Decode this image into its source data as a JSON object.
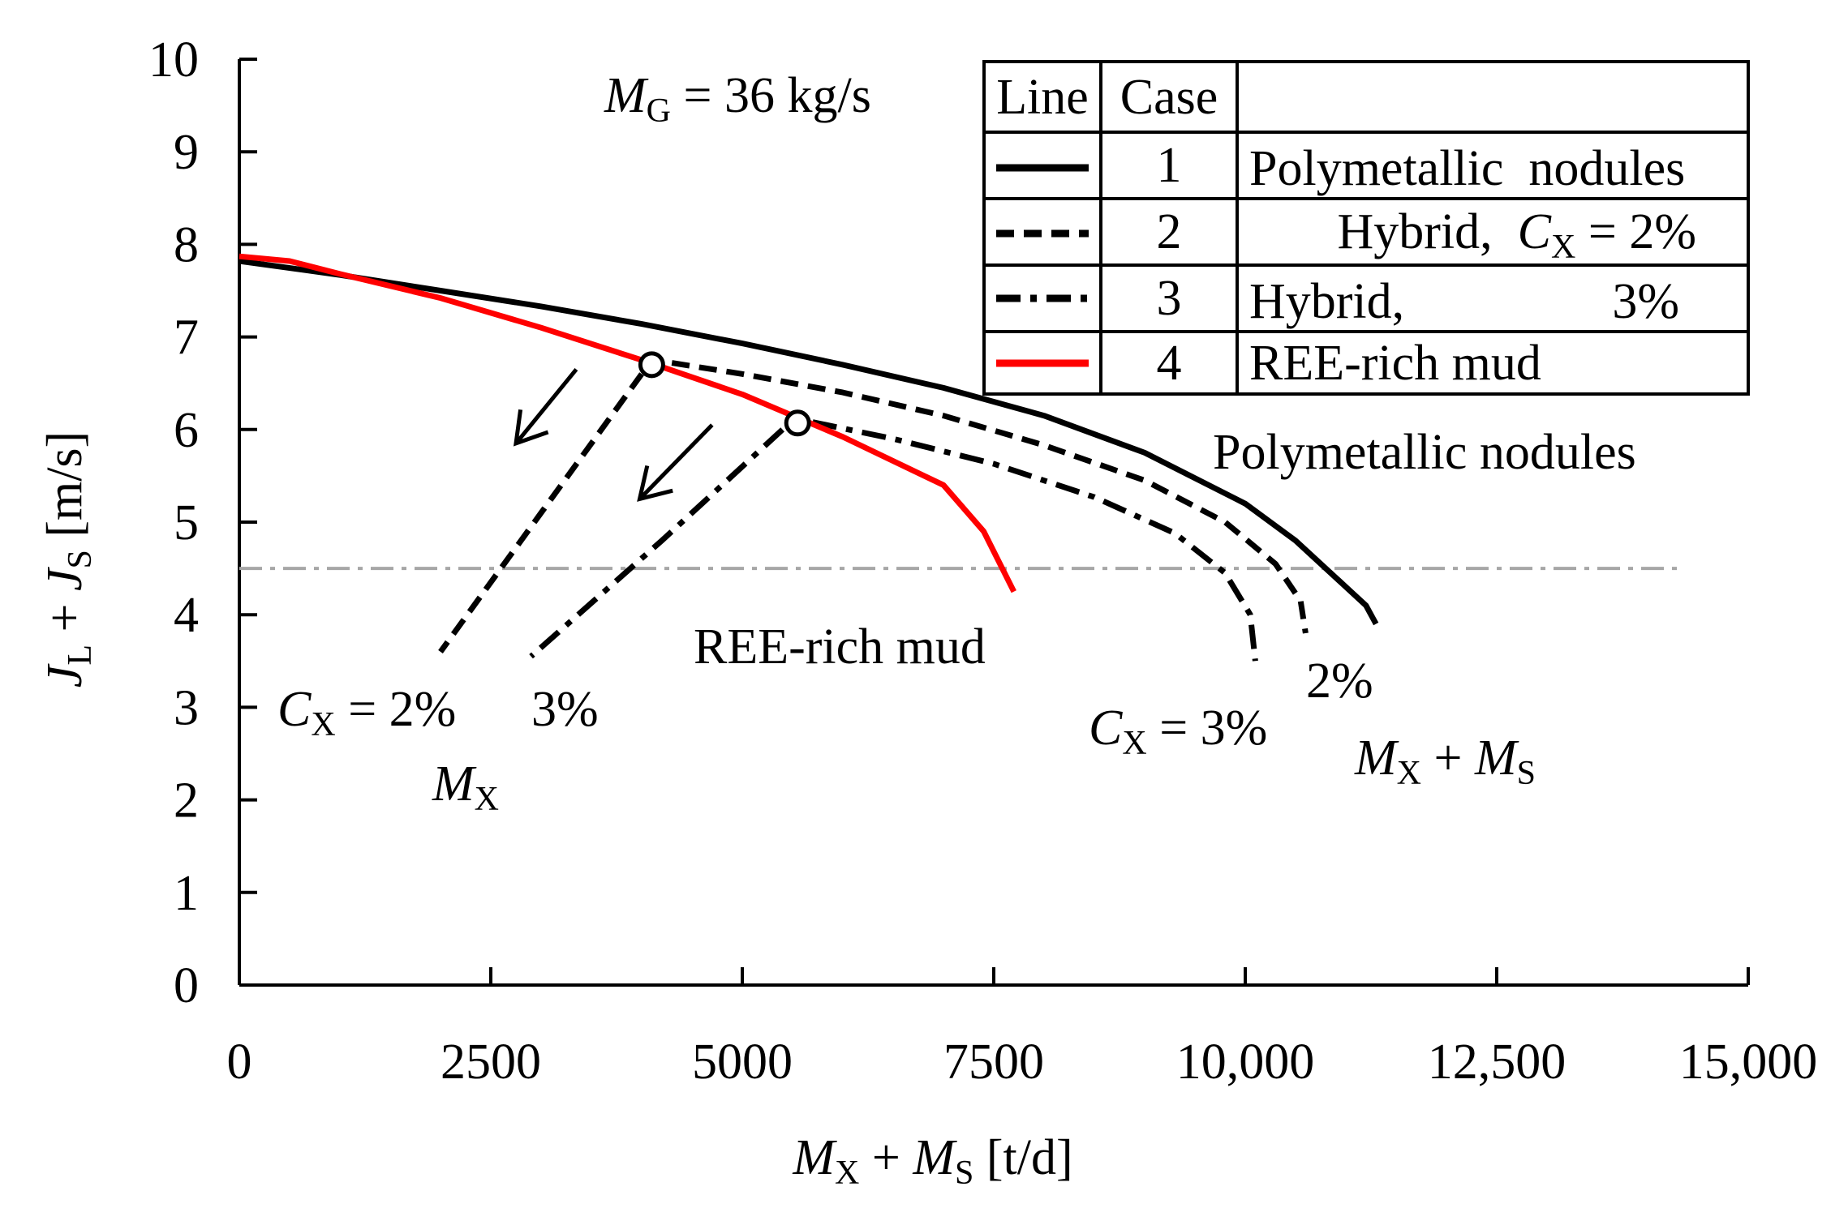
{
  "chart_data": {
    "type": "line",
    "title": "",
    "xlabel": {
      "v1": "M",
      "s1": "X",
      "plus": " + ",
      "v2": "M",
      "s2": "S",
      "unit": " [t/d]"
    },
    "ylabel": {
      "v1": "J",
      "s1": "L",
      "plus": " + ",
      "v2": "J",
      "s2": "S",
      "unit": " [m/s]"
    },
    "xlim": [
      0,
      15000
    ],
    "ylim": [
      0,
      10
    ],
    "xticks": [
      0,
      2500,
      5000,
      7500,
      10000,
      12500,
      15000
    ],
    "xtick_labels": [
      "0",
      "2500",
      "5000",
      "7500",
      "10,000",
      "12,500",
      "15,000"
    ],
    "yticks": [
      0,
      1,
      2,
      3,
      4,
      5,
      6,
      7,
      8,
      9,
      10
    ],
    "ytick_labels": [
      "0",
      "1",
      "2",
      "3",
      "4",
      "5",
      "6",
      "7",
      "8",
      "9",
      "10"
    ],
    "reference_line": {
      "y": 4.5,
      "x_range": [
        0,
        14300
      ],
      "color": "#a6a6a6"
    },
    "series": [
      {
        "name": "Polymetallic nodules",
        "case": "1",
        "color": "#000000",
        "style": "solid",
        "points": [
          [
            0,
            7.82
          ],
          [
            1000,
            7.67
          ],
          [
            2000,
            7.5
          ],
          [
            3000,
            7.33
          ],
          [
            4000,
            7.14
          ],
          [
            5000,
            6.93
          ],
          [
            6000,
            6.7
          ],
          [
            7000,
            6.45
          ],
          [
            8000,
            6.15
          ],
          [
            9000,
            5.75
          ],
          [
            10000,
            5.2
          ],
          [
            10500,
            4.8
          ],
          [
            11000,
            4.3
          ],
          [
            11200,
            4.1
          ],
          [
            11300,
            3.9
          ]
        ]
      },
      {
        "name": "Hybrid, CX = 2%",
        "case": "2",
        "color": "#000000",
        "style": "dashed",
        "points": [
          [
            4300,
            6.72
          ],
          [
            5000,
            6.6
          ],
          [
            6000,
            6.4
          ],
          [
            7000,
            6.15
          ],
          [
            8000,
            5.83
          ],
          [
            9000,
            5.45
          ],
          [
            9800,
            5.0
          ],
          [
            10300,
            4.55
          ],
          [
            10550,
            4.15
          ],
          [
            10600,
            3.8
          ]
        ]
      },
      {
        "name": "Hybrid, 3%",
        "case": "3",
        "color": "#000000",
        "style": "dashdot",
        "points": [
          [
            5700,
            6.08
          ],
          [
            6500,
            5.9
          ],
          [
            7500,
            5.63
          ],
          [
            8500,
            5.27
          ],
          [
            9300,
            4.88
          ],
          [
            9800,
            4.45
          ],
          [
            10050,
            4.0
          ],
          [
            10100,
            3.5
          ]
        ]
      },
      {
        "name": "REE-rich mud",
        "case": "4",
        "color": "#ff0000",
        "style": "solid",
        "points": [
          [
            0,
            7.87
          ],
          [
            500,
            7.82
          ],
          [
            1000,
            7.68
          ],
          [
            2000,
            7.42
          ],
          [
            3000,
            7.1
          ],
          [
            4000,
            6.75
          ],
          [
            5000,
            6.38
          ],
          [
            6000,
            5.92
          ],
          [
            7000,
            5.4
          ],
          [
            7400,
            4.9
          ],
          [
            7700,
            4.25
          ]
        ]
      },
      {
        "name": "MX, CX = 2%",
        "color": "#000000",
        "style": "dashed",
        "points": [
          [
            4000,
            6.6
          ],
          [
            3000,
            5.1
          ],
          [
            2000,
            3.6
          ]
        ]
      },
      {
        "name": "MX, CX = 3%",
        "color": "#000000",
        "style": "dashdot",
        "points": [
          [
            5400,
            6.0
          ],
          [
            4200,
            4.8
          ],
          [
            2900,
            3.55
          ]
        ]
      }
    ],
    "markers": [
      [
        4100,
        6.7
      ],
      [
        5550,
        6.07
      ]
    ],
    "arrows": [
      {
        "from": [
          3350,
          6.65
        ],
        "to": [
          2750,
          5.85
        ]
      },
      {
        "from": [
          4700,
          6.05
        ],
        "to": [
          3980,
          5.25
        ]
      }
    ],
    "annotations": {
      "mg": {
        "var": "M",
        "sub": "G",
        "rest": " = 36 kg/s"
      },
      "poly": "Polymetallic nodules",
      "ree": "REE-rich mud",
      "cx_left": {
        "var": "C",
        "sub": "X",
        "rest": " = 2%"
      },
      "left_3pct": "3%",
      "mx": {
        "var": "M",
        "sub": "X"
      },
      "pct2": "2%",
      "cx_right": {
        "var": "C",
        "sub": "X",
        "rest": " = 3%"
      },
      "mxms": {
        "v1": "M",
        "s1": "X",
        "plus": " + ",
        "v2": "M",
        "s2": "S"
      }
    },
    "legend": {
      "position": "top-right",
      "headers": {
        "line": "Line",
        "case": "Case"
      },
      "rows": [
        {
          "case": "1",
          "style": "solid",
          "color": "#000000",
          "label": "Polymetallic  nodules"
        },
        {
          "case": "2",
          "style": "dashed",
          "color": "#000000",
          "label_pre": "Hybrid,  ",
          "var": "C",
          "sub": "X",
          "label_post": " = 2%"
        },
        {
          "case": "3",
          "style": "dashdot",
          "color": "#000000",
          "label_pre": "Hybrid,",
          "label_post": "3%"
        },
        {
          "case": "4",
          "style": "solid",
          "color": "#ff0000",
          "label": "REE-rich mud"
        }
      ]
    }
  }
}
